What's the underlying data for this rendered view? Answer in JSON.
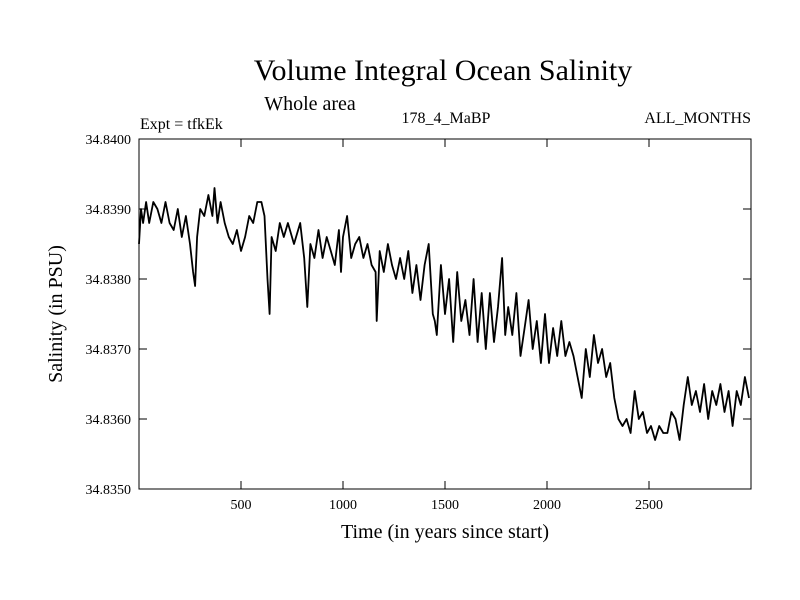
{
  "chart_data": {
    "type": "line",
    "title": "Volume Integral Ocean Salinity",
    "subtitle": "Whole area",
    "experiment_label": "Expt = tfkEk",
    "run_label": "178_4_MaBP",
    "period_label": "ALL_MONTHS",
    "xlabel": "Time (in years since start)",
    "ylabel": "Salinity (in PSU)",
    "xlim": [
      0,
      3000
    ],
    "ylim": [
      34.835,
      34.84
    ],
    "x_ticks": [
      500,
      1000,
      1500,
      2000,
      2500
    ],
    "y_ticks": [
      "34.8350",
      "34.8360",
      "34.8370",
      "34.8380",
      "34.8390",
      "34.8400"
    ],
    "grid": false,
    "series": [
      {
        "color": "#000000",
        "x": [
          0,
          10,
          20,
          35,
          50,
          70,
          90,
          110,
          130,
          150,
          170,
          190,
          210,
          230,
          250,
          265,
          275,
          285,
          300,
          320,
          340,
          360,
          370,
          385,
          400,
          420,
          440,
          460,
          480,
          500,
          520,
          540,
          560,
          580,
          600,
          615,
          630,
          640,
          650,
          670,
          690,
          710,
          730,
          760,
          790,
          810,
          825,
          840,
          860,
          880,
          900,
          920,
          940,
          960,
          980,
          990,
          1000,
          1020,
          1040,
          1060,
          1080,
          1100,
          1120,
          1140,
          1160,
          1165,
          1180,
          1200,
          1220,
          1240,
          1260,
          1280,
          1300,
          1320,
          1340,
          1360,
          1380,
          1400,
          1420,
          1440,
          1450,
          1460,
          1480,
          1500,
          1520,
          1540,
          1560,
          1580,
          1600,
          1620,
          1640,
          1660,
          1680,
          1700,
          1720,
          1740,
          1760,
          1780,
          1795,
          1810,
          1830,
          1850,
          1870,
          1890,
          1910,
          1930,
          1950,
          1970,
          1990,
          2010,
          2030,
          2050,
          2070,
          2090,
          2110,
          2130,
          2150,
          2170,
          2190,
          2210,
          2230,
          2250,
          2270,
          2290,
          2310,
          2330,
          2350,
          2370,
          2390,
          2410,
          2430,
          2450,
          2470,
          2490,
          2510,
          2530,
          2550,
          2570,
          2590,
          2610,
          2630,
          2650,
          2670,
          2690,
          2710,
          2730,
          2750,
          2770,
          2790,
          2810,
          2830,
          2850,
          2870,
          2890,
          2910,
          2930,
          2950,
          2970,
          2990
        ],
        "values": [
          34.8385,
          34.839,
          34.8388,
          34.8391,
          34.8388,
          34.8391,
          34.839,
          34.8388,
          34.8391,
          34.8388,
          34.8387,
          34.839,
          34.8386,
          34.8389,
          34.8385,
          34.8381,
          34.8379,
          34.8386,
          34.839,
          34.8389,
          34.8392,
          34.8389,
          34.8393,
          34.8388,
          34.8391,
          34.8388,
          34.8386,
          34.8385,
          34.8387,
          34.8384,
          34.8386,
          34.8389,
          34.8388,
          34.8391,
          34.8391,
          34.8389,
          34.838,
          34.8375,
          34.8386,
          34.8384,
          34.8388,
          34.8386,
          34.8388,
          34.8385,
          34.8388,
          34.8383,
          34.8376,
          34.8385,
          34.8383,
          34.8387,
          34.8383,
          34.8386,
          34.8384,
          34.8382,
          34.8387,
          34.8381,
          34.8386,
          34.8389,
          34.8383,
          34.8385,
          34.8386,
          34.8383,
          34.8385,
          34.8382,
          34.8381,
          34.8374,
          34.8384,
          34.8381,
          34.8385,
          34.8382,
          34.838,
          34.8383,
          34.838,
          34.8384,
          34.8378,
          34.8382,
          34.8377,
          34.8382,
          34.8385,
          34.8375,
          34.8374,
          34.8372,
          34.8382,
          34.8375,
          34.838,
          34.8371,
          34.8381,
          34.8374,
          34.8377,
          34.8372,
          34.838,
          34.8371,
          34.8378,
          34.837,
          34.8378,
          34.8371,
          34.8376,
          34.8383,
          34.8372,
          34.8376,
          34.8372,
          34.8378,
          34.8369,
          34.8373,
          34.8377,
          34.837,
          34.8374,
          34.8368,
          34.8375,
          34.8368,
          34.8373,
          34.8369,
          34.8374,
          34.8369,
          34.8371,
          34.8369,
          34.8366,
          34.8363,
          34.837,
          34.8366,
          34.8372,
          34.8368,
          34.837,
          34.8366,
          34.8368,
          34.8363,
          34.836,
          34.8359,
          34.836,
          34.8358,
          34.8364,
          34.836,
          34.8361,
          34.8358,
          34.8359,
          34.8357,
          34.8359,
          34.8358,
          34.8358,
          34.8361,
          34.836,
          34.8357,
          34.8362,
          34.8366,
          34.8362,
          34.8364,
          34.8361,
          34.8365,
          34.836,
          34.8364,
          34.8362,
          34.8365,
          34.8361,
          34.8364,
          34.8359,
          34.8364,
          34.8362,
          34.8366,
          34.8363
        ]
      }
    ]
  }
}
